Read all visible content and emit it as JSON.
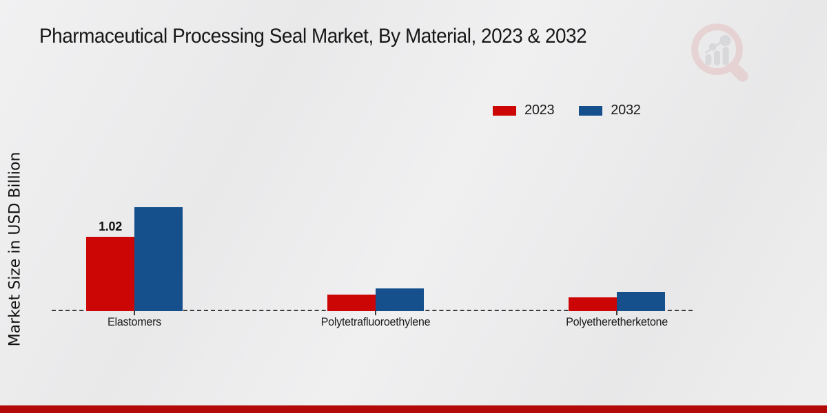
{
  "title": "Pharmaceutical Processing Seal Market, By Material, 2023 & 2032",
  "y_axis_label": "Market Size in USD Billion",
  "legend": [
    {
      "label": "2023",
      "color": "#cc0505"
    },
    {
      "label": "2032",
      "color": "#15508d"
    }
  ],
  "colors": {
    "series_2023": "#cc0505",
    "series_2032": "#15508d",
    "bottom_band": "#b40909",
    "axis": "#3c3c3c",
    "text": "#1a1a1a"
  },
  "watermark_icon": "magnifier-bar-chart-logo",
  "chart_data": {
    "type": "bar",
    "title": "Pharmaceutical Processing Seal Market, By Material, 2023 & 2032",
    "xlabel": "",
    "ylabel": "Market Size in USD Billion",
    "unit": "USD Billion",
    "categories": [
      "Elastomers",
      "Polytetrafluoroethylene",
      "Polyetheretherketone"
    ],
    "series": [
      {
        "name": "2023",
        "color": "#cc0505",
        "values": [
          1.02,
          0.23,
          0.19
        ],
        "value_labels": [
          "1.02",
          "",
          ""
        ]
      },
      {
        "name": "2032",
        "color": "#15508d",
        "values": [
          1.42,
          0.31,
          0.26
        ],
        "value_labels": [
          "",
          "",
          ""
        ]
      }
    ],
    "ylim": [
      0,
      1.6
    ],
    "grid": false,
    "baseline_style": "dashed",
    "legend_position": "top-right"
  }
}
